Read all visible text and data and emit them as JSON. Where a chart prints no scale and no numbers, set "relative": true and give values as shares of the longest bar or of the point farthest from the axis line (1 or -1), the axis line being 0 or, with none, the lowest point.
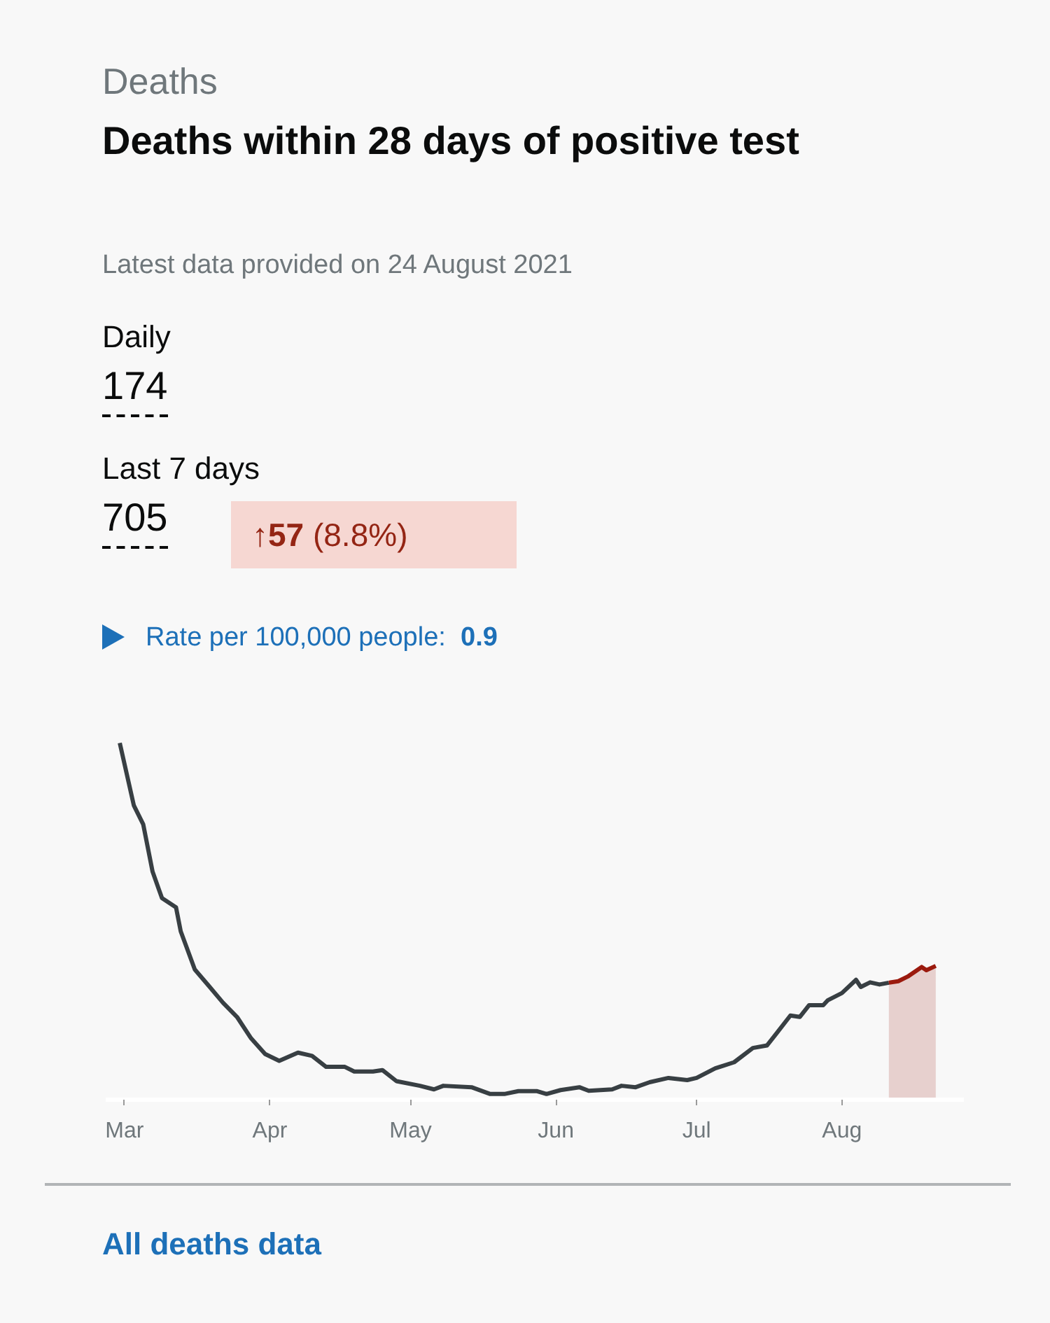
{
  "chart_data": {
    "type": "line",
    "title": "Deaths within 28 days of positive test",
    "subtitle": "Latest data provided on 24 August 2021",
    "annotations": [
      "Deaths",
      "Daily",
      "174",
      "Last 7 days",
      "705",
      "↑57 (8.8%)",
      "Rate per 100,000 people: 0.9",
      "All deaths data"
    ],
    "relative": true,
    "xlim": [
      "2021-02-25",
      "2021-08-27"
    ],
    "xticks": [
      {
        "value": "2021-03-01",
        "label": "Mar"
      },
      {
        "value": "2021-04-01",
        "label": "Apr"
      },
      {
        "value": "2021-05-01",
        "label": "May"
      },
      {
        "value": "2021-06-01",
        "label": "Jun"
      },
      {
        "value": "2021-07-01",
        "label": "Jul"
      },
      {
        "value": "2021-08-01",
        "label": "Aug"
      }
    ],
    "series": [
      {
        "color": "#383f43",
        "x": [
          "2021-02-28",
          "2021-03-03",
          "2021-03-05",
          "2021-03-07",
          "2021-03-09",
          "2021-03-12",
          "2021-03-13",
          "2021-03-16",
          "2021-03-19",
          "2021-03-22",
          "2021-03-25",
          "2021-03-28",
          "2021-03-31",
          "2021-04-03",
          "2021-04-07",
          "2021-04-10",
          "2021-04-13",
          "2021-04-17",
          "2021-04-19",
          "2021-04-23",
          "2021-04-25",
          "2021-04-28",
          "2021-05-03",
          "2021-05-06",
          "2021-05-08",
          "2021-05-14",
          "2021-05-18",
          "2021-05-21",
          "2021-05-24",
          "2021-05-28",
          "2021-05-30",
          "2021-06-02",
          "2021-06-06",
          "2021-06-08",
          "2021-06-13",
          "2021-06-15",
          "2021-06-18",
          "2021-06-21",
          "2021-06-25",
          "2021-06-29",
          "2021-07-01",
          "2021-07-05",
          "2021-07-09",
          "2021-07-13",
          "2021-07-16",
          "2021-07-18",
          "2021-07-21",
          "2021-07-23",
          "2021-07-25",
          "2021-07-28",
          "2021-07-29",
          "2021-08-01",
          "2021-08-04",
          "2021-08-05",
          "2021-08-07",
          "2021-08-09",
          "2021-08-11"
        ],
        "values": [
          1.0,
          0.825,
          0.772,
          0.639,
          0.565,
          0.539,
          0.472,
          0.365,
          0.319,
          0.272,
          0.232,
          0.172,
          0.128,
          0.109,
          0.132,
          0.123,
          0.092,
          0.092,
          0.079,
          0.079,
          0.083,
          0.052,
          0.039,
          0.029,
          0.039,
          0.035,
          0.016,
          0.016,
          0.024,
          0.024,
          0.016,
          0.027,
          0.035,
          0.025,
          0.029,
          0.039,
          0.035,
          0.049,
          0.061,
          0.055,
          0.061,
          0.088,
          0.105,
          0.145,
          0.152,
          0.185,
          0.236,
          0.232,
          0.265,
          0.265,
          0.279,
          0.299,
          0.336,
          0.316,
          0.329,
          0.323,
          0.328
        ]
      },
      {
        "type": "area",
        "color": "#9b1a0e",
        "x": [
          "2021-08-11",
          "2021-08-13",
          "2021-08-15",
          "2021-08-18",
          "2021-08-19",
          "2021-08-21"
        ],
        "values": [
          0.328,
          0.332,
          0.345,
          0.372,
          0.363,
          0.375
        ]
      }
    ]
  }
}
